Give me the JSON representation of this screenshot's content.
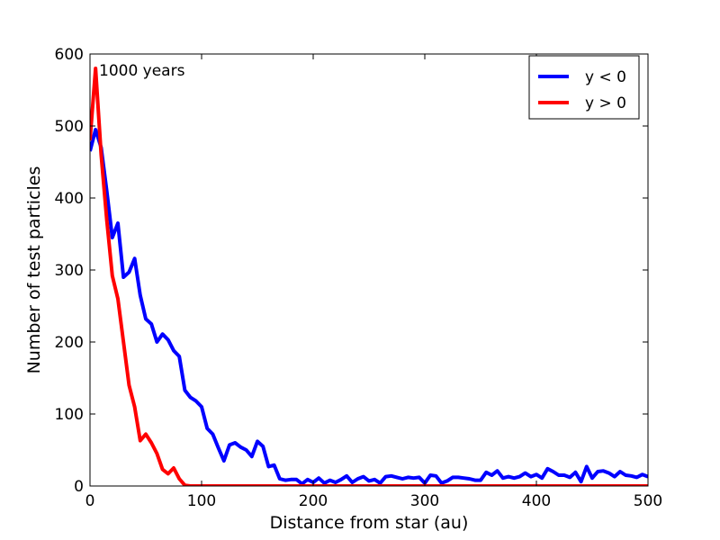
{
  "chart_data": {
    "type": "line",
    "title": "",
    "xlabel": "Distance from star (au)",
    "ylabel": "Number of test particles",
    "xlim": [
      0,
      500
    ],
    "ylim": [
      0,
      600
    ],
    "xticks": [
      0,
      100,
      200,
      300,
      400,
      500
    ],
    "yticks": [
      0,
      100,
      200,
      300,
      400,
      500,
      600
    ],
    "grid": false,
    "legend_position": "top-right",
    "annotation": "1000 years",
    "series": [
      {
        "name": "y < 0",
        "color": "#0000ff",
        "x": [
          0,
          5,
          10,
          15,
          20,
          25,
          30,
          35,
          40,
          45,
          50,
          55,
          60,
          65,
          70,
          75,
          80,
          85,
          90,
          95,
          100,
          105,
          110,
          115,
          120,
          125,
          130,
          135,
          140,
          145,
          150,
          155,
          160,
          165,
          170,
          175,
          180,
          185,
          190,
          195,
          200,
          205,
          210,
          215,
          220,
          225,
          230,
          235,
          240,
          245,
          250,
          255,
          260,
          265,
          270,
          275,
          280,
          285,
          290,
          295,
          300,
          305,
          310,
          315,
          320,
          325,
          330,
          335,
          340,
          345,
          350,
          355,
          360,
          365,
          370,
          375,
          380,
          385,
          390,
          395,
          400,
          405,
          410,
          415,
          420,
          425,
          430,
          435,
          440,
          445,
          450,
          455,
          460,
          465,
          470,
          475,
          480,
          485,
          490,
          495,
          500
        ],
        "y": [
          465,
          495,
          470,
          410,
          345,
          365,
          290,
          297,
          316,
          265,
          232,
          225,
          200,
          211,
          203,
          188,
          180,
          133,
          123,
          118,
          110,
          80,
          72,
          53,
          35,
          57,
          60,
          54,
          50,
          41,
          62,
          55,
          27,
          29,
          10,
          8,
          9,
          9,
          3,
          9,
          5,
          11,
          4,
          8,
          5,
          9,
          14,
          5,
          10,
          13,
          7,
          9,
          4,
          13,
          14,
          12,
          10,
          12,
          11,
          12,
          4,
          15,
          14,
          4,
          7,
          12,
          12,
          11,
          10,
          8,
          8,
          19,
          15,
          21,
          11,
          13,
          11,
          13,
          18,
          13,
          16,
          11,
          24,
          20,
          15,
          15,
          12,
          19,
          6,
          27,
          11,
          20,
          21,
          18,
          13,
          20,
          15,
          14,
          12,
          16,
          13
        ]
      },
      {
        "name": "y > 0",
        "color": "#ff0000",
        "x": [
          0,
          5,
          10,
          15,
          20,
          25,
          30,
          35,
          40,
          45,
          50,
          55,
          60,
          65,
          70,
          75,
          80,
          85,
          90,
          95,
          100,
          105,
          110,
          115,
          120,
          125,
          130,
          135,
          140,
          145,
          150,
          155,
          160,
          165,
          170,
          175,
          180,
          185,
          190,
          195,
          200,
          205,
          210,
          215,
          220,
          225,
          230,
          235,
          240,
          245,
          250,
          255,
          260,
          265,
          270,
          275,
          280,
          285,
          290,
          295,
          300,
          305,
          310,
          315,
          320,
          325,
          330,
          335,
          340,
          345,
          350,
          355,
          360,
          365,
          370,
          375,
          380,
          385,
          390,
          395,
          400,
          405,
          410,
          415,
          420,
          425,
          430,
          435,
          440,
          445,
          450,
          455,
          460,
          465,
          470,
          475,
          480,
          485,
          490,
          495,
          500
        ],
        "y": [
          480,
          580,
          460,
          370,
          292,
          260,
          200,
          140,
          110,
          63,
          72,
          60,
          45,
          23,
          17,
          25,
          10,
          1,
          0,
          0,
          0,
          0,
          0,
          0,
          0,
          0,
          0,
          0,
          0,
          0,
          0,
          0,
          0,
          0,
          0,
          0,
          0,
          0,
          0,
          0,
          0,
          0,
          0,
          0,
          0,
          0,
          0,
          0,
          0,
          0,
          0,
          0,
          0,
          0,
          0,
          0,
          0,
          0,
          0,
          0,
          0,
          0,
          0,
          0,
          0,
          0,
          0,
          0,
          0,
          0,
          0,
          0,
          0,
          0,
          0,
          0,
          0,
          0,
          0,
          0,
          0,
          0,
          0,
          0,
          0,
          0,
          0,
          0,
          0,
          0,
          0,
          0,
          0,
          0,
          0,
          0,
          0,
          0,
          0,
          0,
          0
        ]
      }
    ]
  }
}
